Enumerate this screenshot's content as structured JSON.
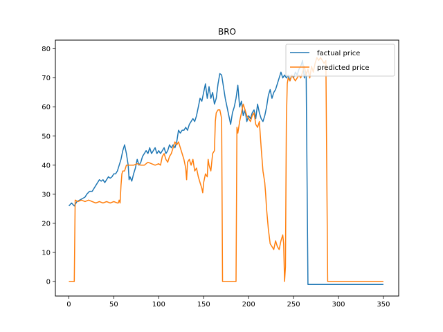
{
  "chart_data": {
    "type": "line",
    "title": "BRO",
    "xlabel": "",
    "ylabel": "",
    "xlim": [
      -15,
      367
    ],
    "ylim": [
      -5,
      83
    ],
    "x_ticks": [
      0,
      50,
      100,
      150,
      200,
      250,
      300,
      350
    ],
    "y_ticks": [
      0,
      10,
      20,
      30,
      40,
      50,
      60,
      70,
      80
    ],
    "grid": false,
    "legend": {
      "placement": "top-right"
    },
    "series": [
      {
        "name": "factual price",
        "color": "#1f77b4",
        "points": [
          [
            0,
            26
          ],
          [
            3,
            27
          ],
          [
            6,
            26
          ],
          [
            9,
            27.5
          ],
          [
            12,
            28
          ],
          [
            15,
            28.5
          ],
          [
            18,
            29
          ],
          [
            20,
            30
          ],
          [
            23,
            31
          ],
          [
            26,
            31
          ],
          [
            28,
            32
          ],
          [
            30,
            33
          ],
          [
            32,
            34
          ],
          [
            34,
            35
          ],
          [
            36,
            34.5
          ],
          [
            38,
            35
          ],
          [
            40,
            34
          ],
          [
            42,
            35
          ],
          [
            44,
            36
          ],
          [
            46,
            35.5
          ],
          [
            48,
            36
          ],
          [
            50,
            37
          ],
          [
            52,
            37
          ],
          [
            54,
            38
          ],
          [
            56,
            40
          ],
          [
            58,
            42
          ],
          [
            60,
            45
          ],
          [
            62,
            47
          ],
          [
            64,
            44
          ],
          [
            66,
            40
          ],
          [
            67,
            35
          ],
          [
            68,
            36
          ],
          [
            70,
            34.5
          ],
          [
            72,
            37
          ],
          [
            74,
            39
          ],
          [
            76,
            42
          ],
          [
            78,
            40
          ],
          [
            80,
            41
          ],
          [
            82,
            43
          ],
          [
            84,
            44
          ],
          [
            86,
            45
          ],
          [
            88,
            44
          ],
          [
            90,
            46
          ],
          [
            92,
            44
          ],
          [
            94,
            45
          ],
          [
            96,
            46
          ],
          [
            98,
            44
          ],
          [
            100,
            45
          ],
          [
            102,
            44
          ],
          [
            104,
            45
          ],
          [
            106,
            46
          ],
          [
            108,
            44
          ],
          [
            110,
            45
          ],
          [
            112,
            47
          ],
          [
            114,
            46
          ],
          [
            116,
            47
          ],
          [
            118,
            46
          ],
          [
            120,
            48
          ],
          [
            122,
            52
          ],
          [
            124,
            51
          ],
          [
            126,
            52
          ],
          [
            128,
            52
          ],
          [
            130,
            53
          ],
          [
            132,
            52
          ],
          [
            134,
            54
          ],
          [
            136,
            55
          ],
          [
            138,
            56
          ],
          [
            140,
            55
          ],
          [
            142,
            57
          ],
          [
            144,
            60
          ],
          [
            146,
            63
          ],
          [
            148,
            62
          ],
          [
            150,
            65
          ],
          [
            152,
            68
          ],
          [
            154,
            63
          ],
          [
            156,
            67
          ],
          [
            158,
            63
          ],
          [
            160,
            65
          ],
          [
            162,
            61
          ],
          [
            164,
            63
          ],
          [
            166,
            68
          ],
          [
            168,
            71.5
          ],
          [
            170,
            71
          ],
          [
            172,
            67
          ],
          [
            174,
            63
          ],
          [
            176,
            60
          ],
          [
            178,
            57
          ],
          [
            180,
            54
          ],
          [
            182,
            58
          ],
          [
            184,
            60
          ],
          [
            186,
            63
          ],
          [
            188,
            67.5
          ],
          [
            190,
            60
          ],
          [
            192,
            62
          ],
          [
            194,
            57
          ],
          [
            196,
            59
          ],
          [
            198,
            55
          ],
          [
            200,
            57
          ],
          [
            202,
            56
          ],
          [
            204,
            58
          ],
          [
            206,
            59
          ],
          [
            208,
            56
          ],
          [
            210,
            61
          ],
          [
            212,
            58
          ],
          [
            214,
            56
          ],
          [
            216,
            55
          ],
          [
            218,
            57
          ],
          [
            220,
            60
          ],
          [
            222,
            64
          ],
          [
            224,
            66
          ],
          [
            226,
            63
          ],
          [
            228,
            65
          ],
          [
            230,
            66
          ],
          [
            232,
            68
          ],
          [
            234,
            70
          ],
          [
            236,
            72
          ],
          [
            238,
            70
          ],
          [
            240,
            71
          ],
          [
            242,
            70
          ],
          [
            244,
            71
          ],
          [
            246,
            69
          ],
          [
            248,
            71
          ],
          [
            250,
            70
          ],
          [
            252,
            72
          ],
          [
            254,
            71
          ],
          [
            256,
            73
          ],
          [
            258,
            74
          ],
          [
            260,
            76
          ],
          [
            262,
            70
          ],
          [
            264,
            72
          ],
          [
            266,
            -1
          ],
          [
            280,
            -1
          ],
          [
            300,
            -1
          ],
          [
            320,
            -1
          ],
          [
            340,
            -1
          ],
          [
            350,
            -1
          ]
        ]
      },
      {
        "name": "predicted price",
        "color": "#ff7f0e",
        "points": [
          [
            0,
            0
          ],
          [
            6,
            0
          ],
          [
            7,
            28
          ],
          [
            10,
            27.5
          ],
          [
            14,
            28
          ],
          [
            18,
            27.5
          ],
          [
            22,
            28
          ],
          [
            26,
            27.5
          ],
          [
            30,
            27
          ],
          [
            34,
            27.5
          ],
          [
            38,
            27
          ],
          [
            42,
            27.5
          ],
          [
            46,
            27
          ],
          [
            50,
            27.5
          ],
          [
            54,
            27
          ],
          [
            55,
            27
          ],
          [
            56,
            28
          ],
          [
            57,
            27
          ],
          [
            58,
            33
          ],
          [
            59,
            37
          ],
          [
            60,
            38
          ],
          [
            62,
            38
          ],
          [
            64,
            40
          ],
          [
            68,
            40
          ],
          [
            72,
            40
          ],
          [
            76,
            40.5
          ],
          [
            80,
            40
          ],
          [
            84,
            40
          ],
          [
            88,
            41
          ],
          [
            92,
            40.5
          ],
          [
            96,
            40
          ],
          [
            100,
            40.5
          ],
          [
            102,
            40
          ],
          [
            104,
            43
          ],
          [
            106,
            44
          ],
          [
            108,
            42
          ],
          [
            110,
            41
          ],
          [
            112,
            43
          ],
          [
            114,
            44
          ],
          [
            116,
            46
          ],
          [
            118,
            48
          ],
          [
            120,
            47
          ],
          [
            122,
            48
          ],
          [
            124,
            46
          ],
          [
            126,
            44
          ],
          [
            128,
            42
          ],
          [
            130,
            39
          ],
          [
            131,
            35
          ],
          [
            132,
            41
          ],
          [
            134,
            42
          ],
          [
            136,
            40
          ],
          [
            138,
            42
          ],
          [
            140,
            38
          ],
          [
            142,
            39
          ],
          [
            144,
            36
          ],
          [
            146,
            34
          ],
          [
            148,
            32
          ],
          [
            149,
            30.5
          ],
          [
            150,
            34
          ],
          [
            152,
            37
          ],
          [
            154,
            36
          ],
          [
            155,
            42
          ],
          [
            156,
            40
          ],
          [
            158,
            38
          ],
          [
            160,
            44
          ],
          [
            162,
            45
          ],
          [
            163,
            55
          ],
          [
            164,
            58
          ],
          [
            166,
            59
          ],
          [
            168,
            59
          ],
          [
            170,
            56
          ],
          [
            171,
            0
          ],
          [
            180,
            0
          ],
          [
            186,
            0
          ],
          [
            187,
            53
          ],
          [
            188,
            51
          ],
          [
            190,
            55
          ],
          [
            192,
            58
          ],
          [
            194,
            61
          ],
          [
            196,
            59
          ],
          [
            198,
            57
          ],
          [
            200,
            56
          ],
          [
            202,
            55
          ],
          [
            204,
            57
          ],
          [
            206,
            58
          ],
          [
            208,
            54
          ],
          [
            210,
            53
          ],
          [
            212,
            55
          ],
          [
            214,
            46
          ],
          [
            216,
            38
          ],
          [
            218,
            34
          ],
          [
            219,
            30
          ],
          [
            220,
            25
          ],
          [
            222,
            18
          ],
          [
            224,
            13
          ],
          [
            226,
            12
          ],
          [
            228,
            11
          ],
          [
            230,
            14
          ],
          [
            232,
            12
          ],
          [
            234,
            11
          ],
          [
            236,
            14
          ],
          [
            238,
            16
          ],
          [
            239,
            13
          ],
          [
            240,
            0
          ],
          [
            241,
            5
          ],
          [
            242,
            55
          ],
          [
            243,
            68
          ],
          [
            244,
            70
          ],
          [
            246,
            69
          ],
          [
            248,
            71
          ],
          [
            250,
            70
          ],
          [
            252,
            69
          ],
          [
            254,
            70
          ],
          [
            256,
            71
          ],
          [
            258,
            70
          ],
          [
            260,
            72
          ],
          [
            262,
            74
          ],
          [
            264,
            71
          ],
          [
            266,
            73
          ],
          [
            268,
            70
          ],
          [
            270,
            74
          ],
          [
            272,
            72
          ],
          [
            274,
            75
          ],
          [
            276,
            77
          ],
          [
            278,
            76
          ],
          [
            280,
            77
          ],
          [
            282,
            76
          ],
          [
            284,
            75
          ],
          [
            286,
            76
          ],
          [
            288,
            0
          ],
          [
            300,
            0
          ],
          [
            320,
            0
          ],
          [
            340,
            0
          ],
          [
            350,
            0
          ]
        ]
      }
    ]
  }
}
